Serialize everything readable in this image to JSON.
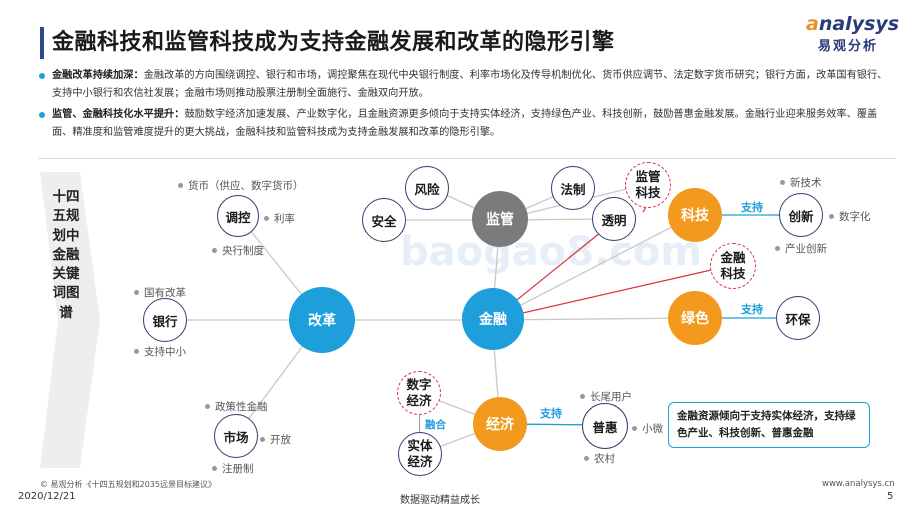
{
  "header": {
    "title": "金融科技和监管科技成为支持金融发展和改革的隐形引擎",
    "logo_top_a": "a",
    "logo_top_b": "nalysys",
    "logo_bottom": "易观分析"
  },
  "bullets": [
    {
      "head": "金融改革持续加深：",
      "body": "金融改革的方向围绕调控、银行和市场，调控聚焦在现代中央银行制度、利率市场化及传导机制优化、货币供应调节、法定数字货币研究；银行方面，改革国有银行、支持中小银行和农信社发展；金融市场则推动股票注册制全面施行、金融双向开放。"
    },
    {
      "head": "监管、金融科技化水平提升：",
      "body": "鼓励数字经济加速发展、产业数字化，且金融资源更多倾向于支持实体经济，支持绿色产业、科技创新，鼓励普惠金融发展。金融行业迎来服务效率、覆盖面、精准度和监管难度提升的更大挑战，金融科技和监管科技成为支持金融发展和改革的隐形引擎。"
    }
  ],
  "side_label": "十四五规划中金融关键词图谱",
  "nodes": {
    "jinrong": "金融",
    "gaige": "改革",
    "jianguan": "监管",
    "keji": "科技",
    "lvse": "绿色",
    "jingji": "经济",
    "tiaokong": "调控",
    "yinhang": "银行",
    "shichang": "市场",
    "fengxian": "风险",
    "anquan": "安全",
    "fazhi": "法制",
    "touming": "透明",
    "chuangxin": "创新",
    "huanbao": "环保",
    "puhui": "普惠",
    "jianguankeji": "监管科技",
    "jinrongkeji": "金融科技",
    "shuzijingji": "数字经济",
    "shitijingji": "实体经济"
  },
  "labels": {
    "huobi": "货币（供应、数字货币）",
    "lilv": "利率",
    "yangxing": "央行制度",
    "guoyou": "国有改革",
    "zhongxiao": "支持中小",
    "zhengce": "政策性金融",
    "kaifang": "开放",
    "zhuce": "注册制",
    "xinjishu": "新技术",
    "shuzihua": "数字化",
    "chanye": "产业创新",
    "changwei": "长尾用户",
    "xiaowei": "小微",
    "nongcun": "农村"
  },
  "supports": {
    "s1": "支持",
    "s2": "支持",
    "s3": "支持",
    "ronghe": "融合"
  },
  "callout": "金融资源倾向于支持实体经济，支持绿色产业、科技创新、普惠金融",
  "watermark": "baogao8.com",
  "footer": {
    "source": "© 易观分析 ·《十四五规划和2035远景目标建议》",
    "date": "2020/12/21",
    "tagline": "数据驱动精益成长",
    "url": "www.analysys.cn",
    "page": "5"
  },
  "colors": {
    "jinrong": "#1e9fdc",
    "gaige": "#1e9fdc",
    "jianguan": "#7b7b7b",
    "orange": "#f39a1e",
    "accent": "#1e9fdc",
    "red_line": "#d9323a"
  }
}
